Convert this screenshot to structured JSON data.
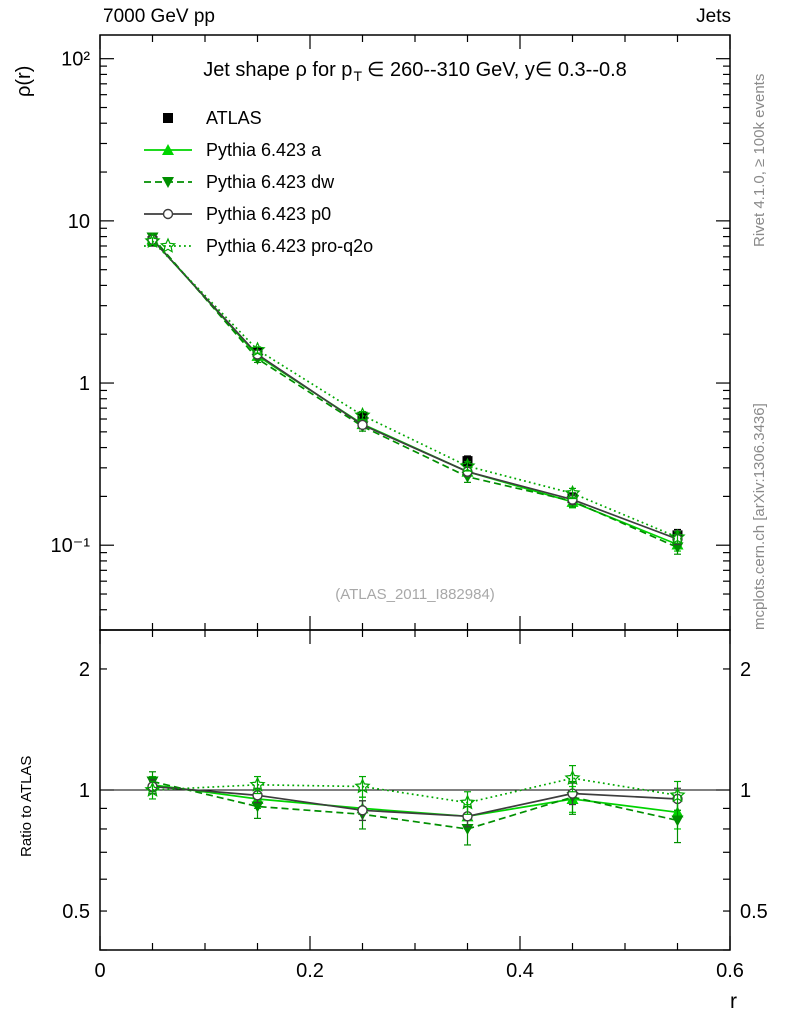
{
  "page": {
    "top_left_title": "7000 GeV pp",
    "top_right_title": "Jets",
    "rivet_note": "Rivet 4.1.0, ≥ 100k events",
    "mcplots_note": "mcplots.cern.ch [arXiv:1306.3436]",
    "watermark": "(ATLAS_2011_I882984)"
  },
  "main_panel": {
    "ylabel": "ρ(r)",
    "title_pre": "Jet shape ρ for p",
    "title_sub": "T",
    "title_post": "∈ 260--310 GeV, y∈ 0.3--0.8"
  },
  "ratio_panel": {
    "ylabel": "Ratio to ATLAS"
  },
  "x_axis": {
    "label": "r"
  },
  "chart_data": [
    {
      "type": "line",
      "panel": "main",
      "title": "Jet shape ρ for p_T ∈ 260--310 GeV, y ∈ 0.3--0.8",
      "xlabel": "r",
      "ylabel": "ρ(r)",
      "xscale": "linear",
      "yscale": "log",
      "xlim": [
        0,
        0.6
      ],
      "ylim": [
        0.03,
        140
      ],
      "grid": false,
      "legend_position": "upper-left",
      "xticks": [
        {
          "v": 0,
          "label": "0"
        },
        {
          "v": 0.2,
          "label": "0.2"
        },
        {
          "v": 0.4,
          "label": "0.4"
        },
        {
          "v": 0.6,
          "label": "0.6"
        }
      ],
      "yticks": [
        {
          "v": 100,
          "label": "10²"
        },
        {
          "v": 10,
          "label": "10"
        },
        {
          "v": 1,
          "label": "1"
        },
        {
          "v": 0.1,
          "label": "10⁻¹"
        }
      ],
      "x": [
        0.05,
        0.15,
        0.25,
        0.35,
        0.45,
        0.55
      ],
      "series": [
        {
          "name": "ATLAS",
          "color": "#000000",
          "marker": "square",
          "line": "none",
          "values": [
            7.5,
            1.55,
            0.62,
            0.33,
            0.195,
            0.115
          ],
          "errors": [
            0.5,
            0.09,
            0.04,
            0.025,
            0.015,
            0.01
          ]
        },
        {
          "name": "Pythia 6.423 a",
          "color": "#00d400",
          "marker": "triangle-up",
          "line": "solid",
          "values": [
            7.7,
            1.47,
            0.558,
            0.284,
            0.185,
            0.101
          ],
          "errors": [
            0.35,
            0.07,
            0.035,
            0.02,
            0.015,
            0.009
          ]
        },
        {
          "name": "Pythia 6.423 dw",
          "color": "#008f00",
          "marker": "triangle-down",
          "line": "dashed",
          "values": [
            7.9,
            1.41,
            0.54,
            0.264,
            0.187,
            0.097
          ],
          "errors": [
            0.35,
            0.07,
            0.035,
            0.02,
            0.015,
            0.009
          ]
        },
        {
          "name": "Pythia 6.423 p0",
          "color": "#3d3d3d",
          "marker": "circle",
          "line": "solid",
          "values": [
            7.65,
            1.5,
            0.552,
            0.284,
            0.191,
            0.109
          ],
          "errors": [
            0.3,
            0.06,
            0.03,
            0.018,
            0.013,
            0.008
          ]
        },
        {
          "name": "Pythia 6.423 pro-q2o",
          "color": "#00a800",
          "marker": "star",
          "line": "dotted",
          "values": [
            7.5,
            1.6,
            0.632,
            0.307,
            0.209,
            0.112
          ],
          "errors": [
            0.35,
            0.07,
            0.035,
            0.02,
            0.015,
            0.009
          ]
        }
      ]
    },
    {
      "type": "line",
      "panel": "ratio",
      "ylabel": "Ratio to ATLAS",
      "xscale": "linear",
      "yscale": "log",
      "xlim": [
        0,
        0.6
      ],
      "ylim": [
        0.4,
        2.5
      ],
      "reference_line": 1,
      "yticks": [
        {
          "v": 2,
          "label": "2"
        },
        {
          "v": 1,
          "label": "1"
        },
        {
          "v": 0.5,
          "label": "0.5"
        }
      ],
      "x": [
        0.05,
        0.15,
        0.25,
        0.35,
        0.45,
        0.55
      ],
      "series": [
        {
          "name": "Pythia 6.423 a",
          "color": "#00d400",
          "marker": "triangle-up",
          "line": "solid",
          "values": [
            1.03,
            0.95,
            0.9,
            0.86,
            0.95,
            0.88
          ],
          "errors": [
            0.05,
            0.05,
            0.06,
            0.06,
            0.07,
            0.08
          ]
        },
        {
          "name": "Pythia 6.423 dw",
          "color": "#008f00",
          "marker": "triangle-down",
          "line": "dashed",
          "values": [
            1.05,
            0.91,
            0.87,
            0.8,
            0.96,
            0.84
          ],
          "errors": [
            0.06,
            0.06,
            0.07,
            0.07,
            0.09,
            0.1
          ]
        },
        {
          "name": "Pythia 6.423 p0",
          "color": "#3d3d3d",
          "marker": "circle",
          "line": "solid",
          "values": [
            1.02,
            0.97,
            0.89,
            0.86,
            0.98,
            0.95
          ],
          "errors": [
            0.04,
            0.04,
            0.05,
            0.05,
            0.06,
            0.06
          ]
        },
        {
          "name": "Pythia 6.423 pro-q2o",
          "color": "#00a800",
          "marker": "star",
          "line": "dotted",
          "values": [
            1.0,
            1.03,
            1.02,
            0.93,
            1.07,
            0.97
          ],
          "errors": [
            0.05,
            0.05,
            0.06,
            0.06,
            0.08,
            0.08
          ]
        }
      ]
    }
  ]
}
